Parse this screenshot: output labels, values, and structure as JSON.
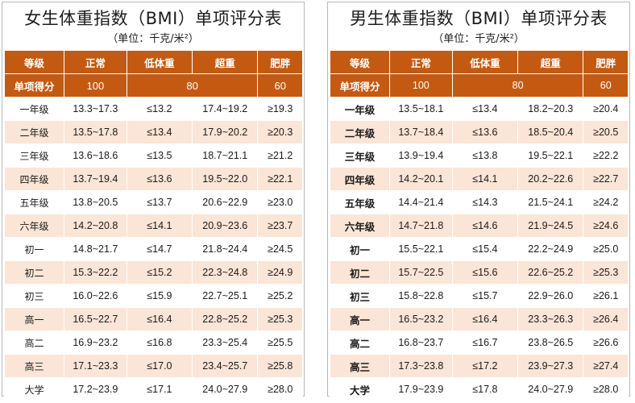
{
  "female": {
    "title": "女生体重指数（BMI）单项评分表",
    "unit": "（单位：千克/米²）",
    "headers": [
      "等级",
      "正常",
      "低体重",
      "超重",
      "肥胖"
    ],
    "score_label": "单项得分",
    "scores": [
      "100",
      "80",
      "60"
    ],
    "rows": [
      [
        "一年级",
        "13.3~17.3",
        "≤13.2",
        "17.4~19.2",
        "≥19.3"
      ],
      [
        "二年级",
        "13.5~17.8",
        "≤13.4",
        "17.9~20.2",
        "≥20.3"
      ],
      [
        "三年级",
        "13.6~18.6",
        "≤13.5",
        "18.7~21.1",
        "≥21.2"
      ],
      [
        "四年级",
        "13.7~19.4",
        "≤13.6",
        "19.5~22.0",
        "≥22.1"
      ],
      [
        "五年级",
        "13.8~20.5",
        "≤13.7",
        "20.6~22.9",
        "≥23.0"
      ],
      [
        "六年级",
        "14.2~20.8",
        "≤14.1",
        "20.9~23.6",
        "≥23.7"
      ],
      [
        "初一",
        "14.8~21.7",
        "≤14.7",
        "21.8~24.4",
        "≥24.5"
      ],
      [
        "初二",
        "15.3~22.2",
        "≤15.2",
        "22.3~24.8",
        "≥24.9"
      ],
      [
        "初三",
        "16.0~22.6",
        "≤15.9",
        "22.7~25.1",
        "≥25.2"
      ],
      [
        "高一",
        "16.5~22.7",
        "≤16.4",
        "22.8~25.2",
        "≥25.3"
      ],
      [
        "高二",
        "16.9~23.2",
        "≤16.8",
        "23.3~25.4",
        "≥25.5"
      ],
      [
        "高三",
        "17.1~23.3",
        "≤17.0",
        "23.4~25.7",
        "≥25.8"
      ],
      [
        "大学",
        "17.2~23.9",
        "≤17.1",
        "24.0~27.9",
        "≥28.0"
      ]
    ]
  },
  "male": {
    "title": "男生体重指数（BMI）单项评分表",
    "unit": "（单位：千克/米²）",
    "headers": [
      "等级",
      "正常",
      "低体重",
      "超重",
      "肥胖"
    ],
    "score_label": "单项得分",
    "scores": [
      "100",
      "80",
      "60"
    ],
    "rows": [
      [
        "一年级",
        "13.5~18.1",
        "≤13.4",
        "18.2~20.3",
        "≥20.4"
      ],
      [
        "二年级",
        "13.7~18.4",
        "≤13.6",
        "18.5~20.4",
        "≥20.5"
      ],
      [
        "三年级",
        "13.9~19.4",
        "≤13.8",
        "19.5~22.1",
        "≥22.2"
      ],
      [
        "四年级",
        "14.2~20.1",
        "≤14.1",
        "20.2~22.6",
        "≥22.7"
      ],
      [
        "五年级",
        "14.4~21.4",
        "≤14.3",
        "21.5~24.1",
        "≥24.2"
      ],
      [
        "六年级",
        "14.7~21.8",
        "≤14.6",
        "21.9~24.5",
        "≥24.6"
      ],
      [
        "初一",
        "15.5~22.1",
        "≤15.4",
        "22.2~24.9",
        "≥25.0"
      ],
      [
        "初二",
        "15.7~22.5",
        "≤15.6",
        "22.6~25.2",
        "≥25.3"
      ],
      [
        "初三",
        "15.8~22.8",
        "≤15.7",
        "22.9~26.0",
        "≥26.1"
      ],
      [
        "高一",
        "16.5~23.2",
        "≤16.4",
        "23.3~26.3",
        "≥26.4"
      ],
      [
        "高二",
        "16.8~23.7",
        "≤16.7",
        "23.8~26.5",
        "≥26.6"
      ],
      [
        "高三",
        "17.3~23.8",
        "≤17.2",
        "23.9~27.3",
        "≥27.4"
      ],
      [
        "大学",
        "17.9~23.9",
        "≤17.8",
        "24.0~27.9",
        "≥28.0"
      ]
    ]
  }
}
